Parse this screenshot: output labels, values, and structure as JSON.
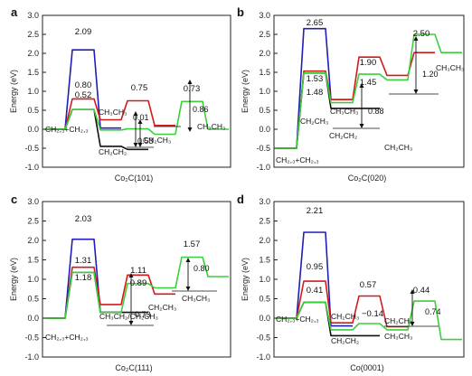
{
  "chart_data": [
    {
      "type": "line",
      "panel_label": "a",
      "xlabel": "Co₂C(101)",
      "ylabel": "Energy (eV)",
      "ylim": [
        -1.0,
        3.0
      ],
      "yticks": [
        "-1.0",
        "-0.5",
        "0.0",
        "0.5",
        "1.0",
        "1.5",
        "2.0",
        "2.5",
        "3.0"
      ],
      "series": [
        {
          "color": "#1f1fb4",
          "steps": [
            0.0,
            2.09,
            0.03
          ]
        },
        {
          "color": "#d11b1b",
          "steps": [
            0.0,
            0.8,
            0.25,
            0.75,
            0.1
          ]
        },
        {
          "color": "#111111",
          "steps": [
            0.0,
            0.52,
            -0.45,
            -0.53
          ]
        },
        {
          "color": "#3ccf3c",
          "steps": [
            0.0,
            0.52,
            -0.02,
            0.01,
            -0.13,
            0.73,
            0.0
          ]
        }
      ],
      "value_labels": [
        {
          "text": "2.09",
          "color": "#1f1fb4"
        },
        {
          "text": "0.80",
          "color": "#111"
        },
        {
          "text": "0.52",
          "color": "#111"
        },
        {
          "text": "0.75",
          "color": "#d11b1b"
        },
        {
          "text": "0.73",
          "color": "#111"
        }
      ],
      "energy_differences": [
        "0.01",
        "0.53",
        "0.86"
      ],
      "species_labels": [
        "CH₂,₃+CH₂,₃",
        "CH₃CH₃",
        "CH₂CH₂",
        "CH₂CH₃",
        "CH₃CH₃"
      ]
    },
    {
      "type": "line",
      "panel_label": "b",
      "xlabel": "Co₂C(020)",
      "ylabel": "Energy (eV)",
      "ylim": [
        -1.0,
        3.0
      ],
      "yticks": [
        "-1.0",
        "-0.5",
        "0.0",
        "0.5",
        "1.0",
        "1.5",
        "2.0",
        "2.5",
        "3.0"
      ],
      "series": [
        {
          "color": "#1f1fb4",
          "steps": [
            -0.5,
            2.65,
            0.78
          ]
        },
        {
          "color": "#d11b1b",
          "steps": [
            -0.5,
            1.53,
            0.78,
            1.9,
            1.42,
            2.02
          ]
        },
        {
          "color": "#111111",
          "steps": [
            -0.5,
            1.48,
            0.55,
            0.55
          ]
        },
        {
          "color": "#3ccf3c",
          "steps": [
            -0.5,
            1.48,
            0.7,
            1.45,
            1.3,
            2.5,
            2.02
          ]
        }
      ],
      "value_labels": [
        {
          "text": "2.65",
          "color": "#111"
        },
        {
          "text": "1.53",
          "color": "#111"
        },
        {
          "text": "1.48",
          "color": "#111"
        },
        {
          "text": "1.90",
          "color": "#111"
        },
        {
          "text": "1.45",
          "color": "#111"
        },
        {
          "text": "2.50",
          "color": "#111"
        }
      ],
      "energy_differences": [
        "0.88",
        "1.20"
      ],
      "species_labels": [
        "CH₂,₃+CH₂,₃",
        "CH₃CH₃",
        "CH₂CH₃",
        "CH₂CH₂",
        "CH₂CH₃",
        "CH₃CH₃"
      ]
    },
    {
      "type": "line",
      "panel_label": "c",
      "xlabel": "Co₂C(111)",
      "ylabel": "Energy (eV)",
      "ylim": [
        -1.0,
        3.0
      ],
      "yticks": [
        "-1.0",
        "-0.5",
        "0.0",
        "0.5",
        "1.0",
        "1.5",
        "2.0",
        "2.5",
        "3.0"
      ],
      "series": [
        {
          "color": "#1f1fb4",
          "steps": [
            0.0,
            2.03,
            0.15
          ]
        },
        {
          "color": "#d11b1b",
          "steps": [
            0.0,
            1.31,
            0.35,
            1.11,
            0.62
          ]
        },
        {
          "color": "#111111",
          "steps": [
            0.0,
            1.18,
            0.15,
            0.15
          ]
        },
        {
          "color": "#3ccf3c",
          "steps": [
            0.0,
            1.18,
            0.15,
            0.89,
            0.78,
            1.57,
            1.07
          ]
        }
      ],
      "value_labels": [
        {
          "text": "2.03",
          "color": "#111"
        },
        {
          "text": "1.31",
          "color": "#111"
        },
        {
          "text": "1.18",
          "color": "#111"
        },
        {
          "text": "1.11",
          "color": "#111"
        },
        {
          "text": "0.89",
          "color": "#111"
        },
        {
          "text": "1.57",
          "color": "#111"
        }
      ],
      "energy_differences": [
        "0.73",
        "0.80"
      ],
      "species_labels": [
        "CH₂,₃+CH₂,₃",
        "CH₃CH₂/CH₂CH₃",
        "CH₂CH₃",
        "CH₃CH₃"
      ]
    },
    {
      "type": "line",
      "panel_label": "d",
      "xlabel": "Co(0001)",
      "ylabel": "Energy (eV)",
      "ylim": [
        -1.0,
        3.0
      ],
      "yticks": [
        "-1.0",
        "-0.5",
        "0.0",
        "0.5",
        "1.0",
        "1.5",
        "2.0",
        "2.5",
        "3.0"
      ],
      "series": [
        {
          "color": "#1f1fb4",
          "steps": [
            0.0,
            2.21,
            -0.2
          ]
        },
        {
          "color": "#d11b1b",
          "steps": [
            0.0,
            0.95,
            -0.12,
            0.57,
            -0.22
          ]
        },
        {
          "color": "#111111",
          "steps": [
            0.0,
            0.41,
            -0.45,
            -0.45
          ]
        },
        {
          "color": "#3ccf3c",
          "steps": [
            0.0,
            0.41,
            -0.3,
            -0.14,
            -0.3,
            0.44,
            -0.55
          ]
        }
      ],
      "value_labels": [
        {
          "text": "2.21",
          "color": "#111"
        },
        {
          "text": "0.95",
          "color": "#111"
        },
        {
          "text": "0.41",
          "color": "#111"
        },
        {
          "text": "0.57",
          "color": "#111"
        },
        {
          "text": "−0.14",
          "color": "#111"
        },
        {
          "text": "0.44",
          "color": "#111"
        }
      ],
      "energy_differences": [
        "0.74"
      ],
      "species_labels": [
        "CH₂,₃+CH₂,₃",
        "CH₂CH₃",
        "CH₂CH₂",
        "CH₂CH₃",
        "CH₃CH₃"
      ]
    }
  ]
}
